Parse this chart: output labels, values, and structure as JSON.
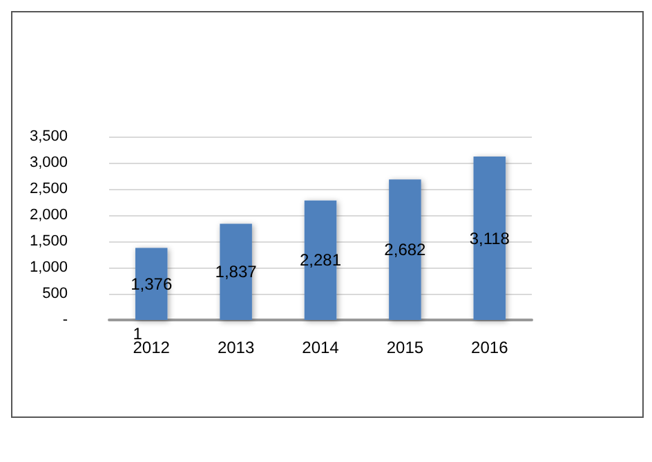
{
  "chart_data": {
    "type": "bar",
    "categories": [
      "2012",
      "2013",
      "2014",
      "2015",
      "2016"
    ],
    "values": [
      1376,
      1837,
      2281,
      2682,
      3118
    ],
    "value_labels": [
      "1,376",
      "1,837",
      "2,281",
      "2,682",
      "3,118"
    ],
    "color": "#4f81bd",
    "ylim": [
      0,
      3500
    ],
    "yticks": [
      {
        "value": 0,
        "label": "-"
      },
      {
        "value": 500,
        "label": "500"
      },
      {
        "value": 1000,
        "label": "1,000"
      },
      {
        "value": 1500,
        "label": "1,500"
      },
      {
        "value": 2000,
        "label": "2,000"
      },
      {
        "value": 2500,
        "label": "2,500"
      },
      {
        "value": 3000,
        "label": "3,000"
      },
      {
        "value": 3500,
        "label": "3,500"
      }
    ],
    "grid": "y",
    "annotations": [
      {
        "text": "1",
        "x": "2012",
        "y": 0
      }
    ]
  }
}
